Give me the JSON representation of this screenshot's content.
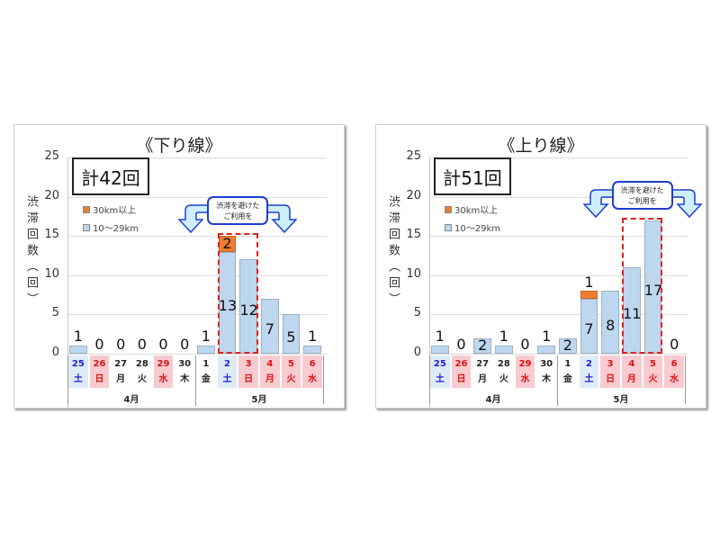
{
  "colors": {
    "bar_10_29km": "#bdd7ee",
    "bar_30km_plus": "#ed7d31",
    "weekend_blue_bg": "#ddebf7",
    "holiday_red_bg": "#f8cbd0",
    "sat_text": "#1f1fd0",
    "holiday_text": "#e01010",
    "highlight_dash": "#e02020",
    "callout_border": "#1f3fd0",
    "arrow_fill": "#cfefff"
  },
  "common": {
    "ylabel": "渋滞回数（回）",
    "yticks": [
      "25",
      "20",
      "15",
      "10",
      "5",
      "0"
    ],
    "legend": [
      {
        "label": "30km以上",
        "color": "#ed7d31"
      },
      {
        "label": "10～29km",
        "color": "#bdd7ee"
      }
    ],
    "callout": "渋滞を避けた\nご利用を",
    "callout_line1": "渋滞を避けた",
    "callout_line2": "ご利用を",
    "months": [
      "4月",
      "5月"
    ],
    "dates": [
      {
        "day": "25",
        "dow": "土",
        "type": "sat"
      },
      {
        "day": "26",
        "dow": "日",
        "type": "hol"
      },
      {
        "day": "27",
        "dow": "月",
        "type": "wk"
      },
      {
        "day": "28",
        "dow": "火",
        "type": "wk"
      },
      {
        "day": "29",
        "dow": "水",
        "type": "hol"
      },
      {
        "day": "30",
        "dow": "木",
        "type": "wk"
      },
      {
        "day": "1",
        "dow": "金",
        "type": "wk"
      },
      {
        "day": "2",
        "dow": "土",
        "type": "sat"
      },
      {
        "day": "3",
        "dow": "日",
        "type": "hol"
      },
      {
        "day": "4",
        "dow": "月",
        "type": "hol"
      },
      {
        "day": "5",
        "dow": "火",
        "type": "hol"
      },
      {
        "day": "6",
        "dow": "水",
        "type": "hol"
      }
    ]
  },
  "left": {
    "title": "《下り線》",
    "total": "計42回"
  },
  "right": {
    "title": "《上り線》",
    "total": "計51回"
  },
  "chart_data": [
    {
      "type": "bar",
      "stacked": true,
      "title": "《下り線》",
      "annotation": "計42回",
      "ylabel": "渋滞回数（回）",
      "xlabel": "",
      "ylim": [
        0,
        25
      ],
      "yticks": [
        0,
        5,
        10,
        15,
        20,
        25
      ],
      "grid": true,
      "legend_position": "upper-left",
      "categories": [
        "4/25(土)",
        "4/26(日)",
        "4/27(月)",
        "4/28(火)",
        "4/29(水)",
        "4/30(木)",
        "5/1(金)",
        "5/2(土)",
        "5/3(日)",
        "5/4(月)",
        "5/5(火)",
        "5/6(水)"
      ],
      "series": [
        {
          "name": "10～29km",
          "values": [
            1,
            0,
            0,
            0,
            0,
            0,
            1,
            13,
            12,
            7,
            5,
            1
          ]
        },
        {
          "name": "30km以上",
          "values": [
            0,
            0,
            0,
            0,
            0,
            0,
            0,
            2,
            0,
            0,
            0,
            0
          ]
        }
      ],
      "highlight": {
        "categories": [
          "5/2(土)",
          "5/3(日)"
        ],
        "label": "渋滞を避けたご利用を"
      }
    },
    {
      "type": "bar",
      "stacked": true,
      "title": "《上り線》",
      "annotation": "計51回",
      "ylabel": "渋滞回数（回）",
      "xlabel": "",
      "ylim": [
        0,
        25
      ],
      "yticks": [
        0,
        5,
        10,
        15,
        20,
        25
      ],
      "grid": true,
      "legend_position": "upper-left",
      "categories": [
        "4/25(土)",
        "4/26(日)",
        "4/27(月)",
        "4/28(火)",
        "4/29(水)",
        "4/30(木)",
        "5/1(金)",
        "5/2(土)",
        "5/3(日)",
        "5/4(月)",
        "5/5(火)",
        "5/6(水)"
      ],
      "series": [
        {
          "name": "10～29km",
          "values": [
            1,
            0,
            2,
            1,
            0,
            1,
            2,
            7,
            8,
            11,
            17,
            0
          ]
        },
        {
          "name": "30km以上",
          "values": [
            0,
            0,
            0,
            0,
            0,
            0,
            0,
            1,
            0,
            0,
            0,
            0
          ]
        }
      ],
      "highlight": {
        "categories": [
          "5/4(月)",
          "5/5(火)"
        ],
        "label": "渋滞を避けたご利用を"
      }
    }
  ]
}
